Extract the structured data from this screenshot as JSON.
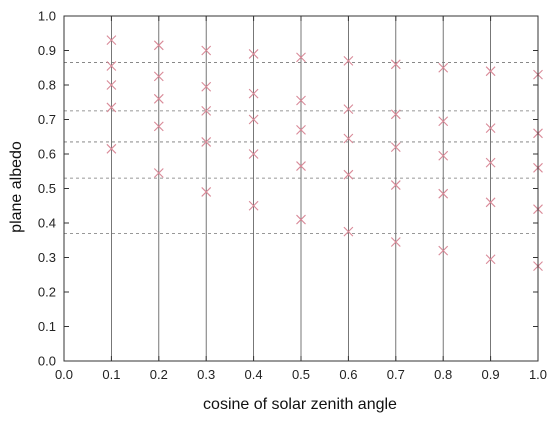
{
  "chart_data": {
    "type": "scatter",
    "xlabel": "cosine of solar zenith angle",
    "ylabel": "plane albedo",
    "xlim": [
      0.0,
      1.0
    ],
    "ylim": [
      0.0,
      1.0
    ],
    "xticks": [
      "0.0",
      "0.1",
      "0.2",
      "0.3",
      "0.4",
      "0.5",
      "0.6",
      "0.7",
      "0.8",
      "0.9",
      "1.0"
    ],
    "yticks": [
      "0.0",
      "0.1",
      "0.2",
      "0.3",
      "0.4",
      "0.5",
      "0.6",
      "0.7",
      "0.8",
      "0.9",
      "1.0"
    ],
    "vertical_lines_x": [
      0.1,
      0.2,
      0.3,
      0.4,
      0.5,
      0.6,
      0.7,
      0.8,
      0.9,
      1.0
    ],
    "dashed_lines_y": [
      0.865,
      0.725,
      0.635,
      0.53,
      0.37
    ],
    "marker": "x",
    "marker_color": "#d98a98",
    "points": [
      {
        "x": 0.1,
        "y": 0.93
      },
      {
        "x": 0.1,
        "y": 0.855
      },
      {
        "x": 0.1,
        "y": 0.8
      },
      {
        "x": 0.1,
        "y": 0.735
      },
      {
        "x": 0.1,
        "y": 0.615
      },
      {
        "x": 0.2,
        "y": 0.915
      },
      {
        "x": 0.2,
        "y": 0.825
      },
      {
        "x": 0.2,
        "y": 0.76
      },
      {
        "x": 0.2,
        "y": 0.68
      },
      {
        "x": 0.2,
        "y": 0.545
      },
      {
        "x": 0.3,
        "y": 0.9
      },
      {
        "x": 0.3,
        "y": 0.795
      },
      {
        "x": 0.3,
        "y": 0.725
      },
      {
        "x": 0.3,
        "y": 0.635
      },
      {
        "x": 0.3,
        "y": 0.49
      },
      {
        "x": 0.4,
        "y": 0.89
      },
      {
        "x": 0.4,
        "y": 0.775
      },
      {
        "x": 0.4,
        "y": 0.7
      },
      {
        "x": 0.4,
        "y": 0.6
      },
      {
        "x": 0.4,
        "y": 0.45
      },
      {
        "x": 0.5,
        "y": 0.88
      },
      {
        "x": 0.5,
        "y": 0.755
      },
      {
        "x": 0.5,
        "y": 0.67
      },
      {
        "x": 0.5,
        "y": 0.565
      },
      {
        "x": 0.5,
        "y": 0.41
      },
      {
        "x": 0.6,
        "y": 0.87
      },
      {
        "x": 0.6,
        "y": 0.73
      },
      {
        "x": 0.6,
        "y": 0.645
      },
      {
        "x": 0.6,
        "y": 0.54
      },
      {
        "x": 0.6,
        "y": 0.375
      },
      {
        "x": 0.7,
        "y": 0.86
      },
      {
        "x": 0.7,
        "y": 0.715
      },
      {
        "x": 0.7,
        "y": 0.62
      },
      {
        "x": 0.7,
        "y": 0.51
      },
      {
        "x": 0.7,
        "y": 0.345
      },
      {
        "x": 0.8,
        "y": 0.85
      },
      {
        "x": 0.8,
        "y": 0.695
      },
      {
        "x": 0.8,
        "y": 0.595
      },
      {
        "x": 0.8,
        "y": 0.485
      },
      {
        "x": 0.8,
        "y": 0.32
      },
      {
        "x": 0.9,
        "y": 0.84
      },
      {
        "x": 0.9,
        "y": 0.675
      },
      {
        "x": 0.9,
        "y": 0.575
      },
      {
        "x": 0.9,
        "y": 0.46
      },
      {
        "x": 0.9,
        "y": 0.295
      },
      {
        "x": 1.0,
        "y": 0.83
      },
      {
        "x": 1.0,
        "y": 0.66
      },
      {
        "x": 1.0,
        "y": 0.56
      },
      {
        "x": 1.0,
        "y": 0.44
      },
      {
        "x": 1.0,
        "y": 0.275
      }
    ]
  }
}
